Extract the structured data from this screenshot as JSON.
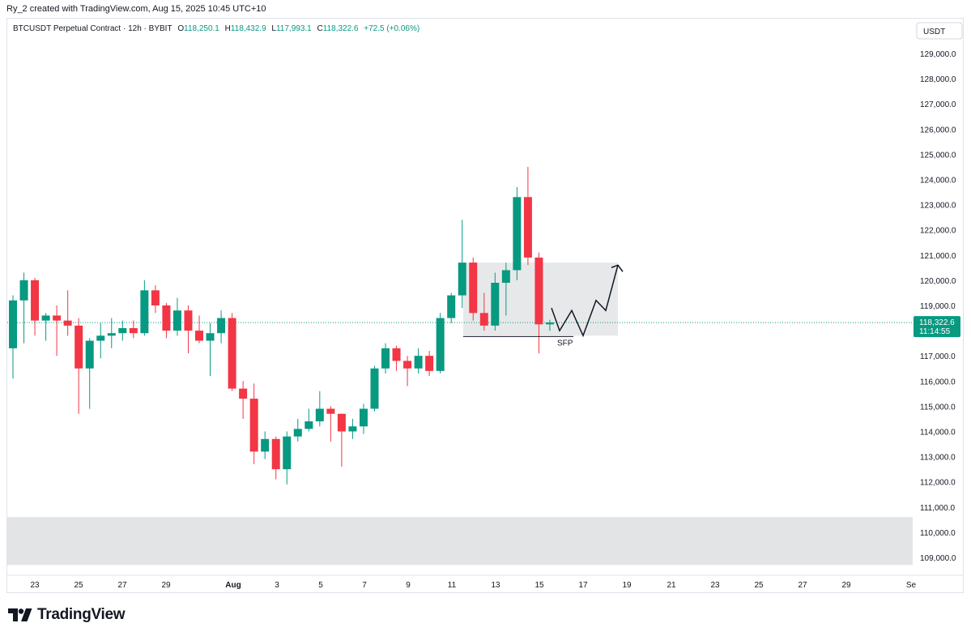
{
  "header": {
    "attribution": "Ry_2 created with TradingView.com, Aug 15, 2025 10:45 UTC+10"
  },
  "legend": {
    "symbol": "BTCUSDT Perpetual Contract · 12h · BYBIT",
    "open_label": "O",
    "open": "118,250.1",
    "high_label": "H",
    "high": "118,432.9",
    "low_label": "L",
    "low": "117,993.1",
    "close_label": "C",
    "close": "118,322.6",
    "change": "+72.5 (+0.06%)"
  },
  "price_axis": {
    "currency": "USDT",
    "last_price": "118,322.6",
    "countdown": "11:14:55"
  },
  "annotation": {
    "sfp_label": "SFP"
  },
  "footer": {
    "brand": "TradingView"
  },
  "colors": {
    "up": "#089981",
    "down": "#f23645",
    "zone": "#e3e4e6",
    "last_line": "#089981"
  },
  "chart_data": {
    "type": "candlestick",
    "title": "BTCUSDT Perpetual Contract · 12h · BYBIT",
    "ylim": [
      108500,
      129700
    ],
    "y_ticks": [
      109000,
      110000,
      111000,
      112000,
      113000,
      114000,
      115000,
      116000,
      117000,
      118000,
      119000,
      120000,
      121000,
      122000,
      123000,
      124000,
      125000,
      126000,
      127000,
      128000,
      129000
    ],
    "y_tick_labels": [
      "109,000.0",
      "110,000.0",
      "111,000.0",
      "112,000.0",
      "113,000.0",
      "114,000.0",
      "115,000.0",
      "116,000.0",
      "117,000.0",
      "118,000.0",
      "119,000.0",
      "120,000.0",
      "121,000.0",
      "122,000.0",
      "123,000.0",
      "124,000.0",
      "125,000.0",
      "126,000.0",
      "127,000.0",
      "128,000.0",
      "129,000.0"
    ],
    "x_labels": [
      "23",
      "25",
      "27",
      "29",
      "Aug",
      "3",
      "5",
      "7",
      "9",
      "11",
      "13",
      "15",
      "17",
      "19",
      "21",
      "23",
      "25",
      "27",
      "29",
      "Se"
    ],
    "last_price": 118322.6,
    "candles": [
      {
        "o": 117300,
        "h": 119400,
        "l": 116100,
        "c": 119200
      },
      {
        "o": 119200,
        "h": 120300,
        "l": 117500,
        "c": 120000
      },
      {
        "o": 120000,
        "h": 120100,
        "l": 117800,
        "c": 118400
      },
      {
        "o": 118400,
        "h": 118700,
        "l": 117600,
        "c": 118600
      },
      {
        "o": 118600,
        "h": 119000,
        "l": 117000,
        "c": 118400
      },
      {
        "o": 118400,
        "h": 119600,
        "l": 117800,
        "c": 118200
      },
      {
        "o": 118200,
        "h": 118500,
        "l": 114700,
        "c": 116500
      },
      {
        "o": 116500,
        "h": 117700,
        "l": 114900,
        "c": 117600
      },
      {
        "o": 117600,
        "h": 118300,
        "l": 116900,
        "c": 117800
      },
      {
        "o": 117800,
        "h": 118500,
        "l": 117300,
        "c": 117900
      },
      {
        "o": 117900,
        "h": 118400,
        "l": 117600,
        "c": 118100
      },
      {
        "o": 118100,
        "h": 118400,
        "l": 117700,
        "c": 117900
      },
      {
        "o": 117900,
        "h": 120000,
        "l": 117800,
        "c": 119600
      },
      {
        "o": 119600,
        "h": 119800,
        "l": 118700,
        "c": 119000
      },
      {
        "o": 119000,
        "h": 119100,
        "l": 117700,
        "c": 118000
      },
      {
        "o": 118000,
        "h": 119300,
        "l": 117800,
        "c": 118800
      },
      {
        "o": 118800,
        "h": 119000,
        "l": 117100,
        "c": 118000
      },
      {
        "o": 118000,
        "h": 118600,
        "l": 117500,
        "c": 117600
      },
      {
        "o": 117600,
        "h": 118300,
        "l": 116200,
        "c": 117900
      },
      {
        "o": 117900,
        "h": 118800,
        "l": 117500,
        "c": 118500
      },
      {
        "o": 118500,
        "h": 118700,
        "l": 115600,
        "c": 115700
      },
      {
        "o": 115700,
        "h": 116000,
        "l": 114500,
        "c": 115300
      },
      {
        "o": 115300,
        "h": 115900,
        "l": 112700,
        "c": 113200
      },
      {
        "o": 113200,
        "h": 114000,
        "l": 112900,
        "c": 113700
      },
      {
        "o": 113700,
        "h": 113800,
        "l": 112100,
        "c": 112500
      },
      {
        "o": 112500,
        "h": 114000,
        "l": 111900,
        "c": 113800
      },
      {
        "o": 113800,
        "h": 114500,
        "l": 113600,
        "c": 114100
      },
      {
        "o": 114100,
        "h": 114900,
        "l": 114000,
        "c": 114400
      },
      {
        "o": 114400,
        "h": 115600,
        "l": 114200,
        "c": 114900
      },
      {
        "o": 114900,
        "h": 115000,
        "l": 113600,
        "c": 114700
      },
      {
        "o": 114700,
        "h": 114700,
        "l": 112600,
        "c": 114000
      },
      {
        "o": 114000,
        "h": 114500,
        "l": 113700,
        "c": 114200
      },
      {
        "o": 114200,
        "h": 115100,
        "l": 113900,
        "c": 114900
      },
      {
        "o": 114900,
        "h": 116600,
        "l": 114800,
        "c": 116500
      },
      {
        "o": 116500,
        "h": 117500,
        "l": 116300,
        "c": 117300
      },
      {
        "o": 117300,
        "h": 117400,
        "l": 116400,
        "c": 116800
      },
      {
        "o": 116800,
        "h": 117000,
        "l": 115800,
        "c": 116500
      },
      {
        "o": 116500,
        "h": 117300,
        "l": 116300,
        "c": 117000
      },
      {
        "o": 117000,
        "h": 117200,
        "l": 116200,
        "c": 116400
      },
      {
        "o": 116400,
        "h": 118700,
        "l": 116300,
        "c": 118500
      },
      {
        "o": 118500,
        "h": 119500,
        "l": 118300,
        "c": 119400
      },
      {
        "o": 119400,
        "h": 122400,
        "l": 118900,
        "c": 120700
      },
      {
        "o": 120700,
        "h": 120900,
        "l": 118400,
        "c": 118700
      },
      {
        "o": 118700,
        "h": 119500,
        "l": 118000,
        "c": 118200
      },
      {
        "o": 118200,
        "h": 120300,
        "l": 118000,
        "c": 119900
      },
      {
        "o": 119900,
        "h": 120700,
        "l": 118600,
        "c": 120400
      },
      {
        "o": 120400,
        "h": 123700,
        "l": 120000,
        "c": 123300
      },
      {
        "o": 123300,
        "h": 124500,
        "l": 120600,
        "c": 120900
      },
      {
        "o": 120900,
        "h": 121100,
        "l": 117100,
        "c": 118250
      },
      {
        "o": 118250.1,
        "h": 118432.9,
        "l": 117993.1,
        "c": 118322.6
      }
    ],
    "annotations": {
      "resistance_zone": [
        117800,
        120700
      ],
      "support_zone": [
        108700,
        110600
      ],
      "sfp_level": 117800,
      "projected_path": [
        118900,
        118000,
        118800,
        117800,
        119200,
        118800,
        120600
      ]
    }
  }
}
